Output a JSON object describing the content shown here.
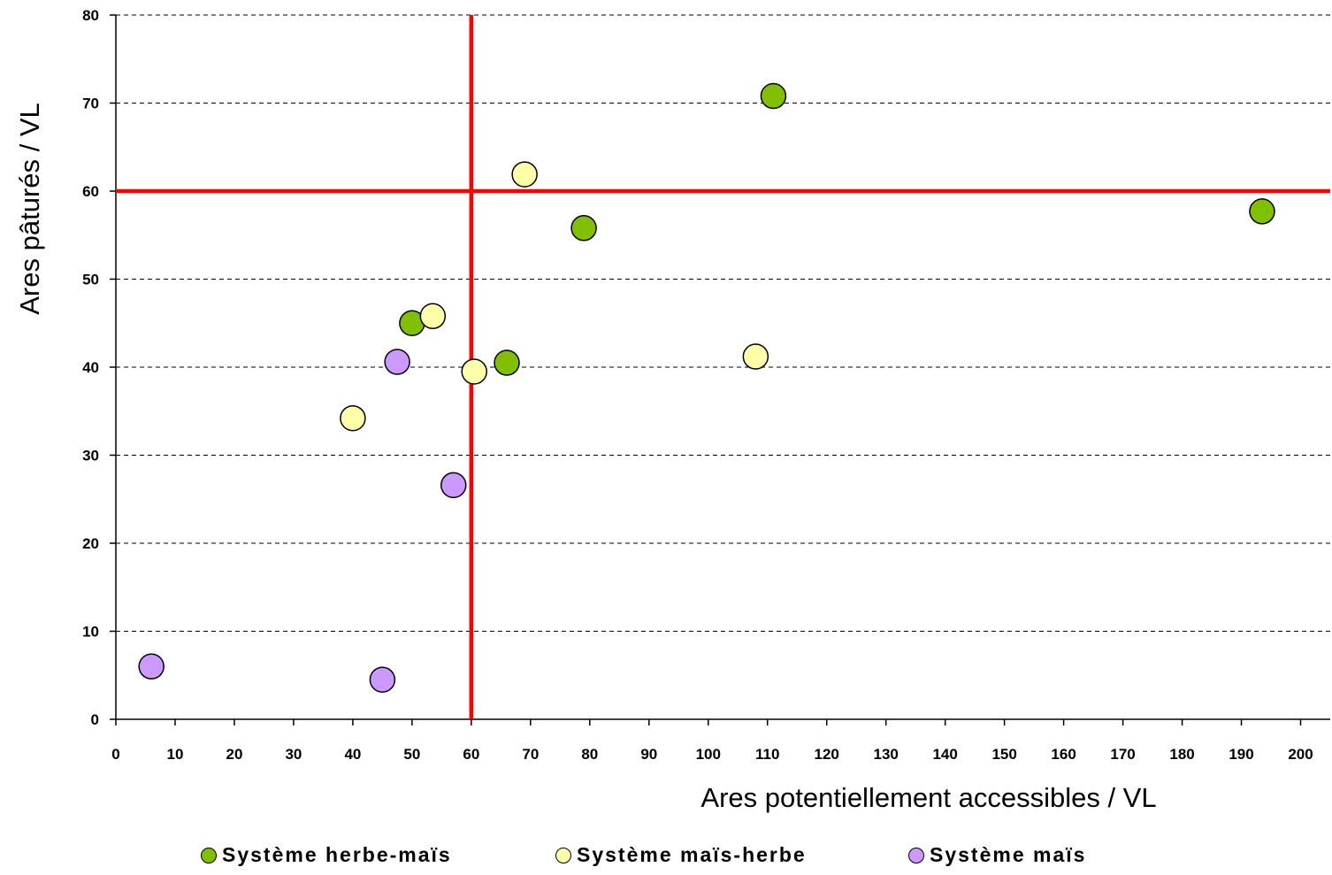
{
  "chart_data": {
    "type": "scatter",
    "title": "",
    "xlabel": "Ares potentiellement accessibles / VL",
    "ylabel": "Ares pâturés / VL",
    "xlim": [
      0,
      205
    ],
    "ylim": [
      0,
      80
    ],
    "x_ticks": [
      0,
      10,
      20,
      30,
      40,
      50,
      60,
      70,
      80,
      90,
      100,
      110,
      120,
      130,
      140,
      150,
      160,
      170,
      180,
      190,
      200
    ],
    "y_ticks": [
      0,
      10,
      20,
      30,
      40,
      50,
      60,
      70,
      80
    ],
    "grid": "horizontal dashed",
    "legend_position": "bottom",
    "reference_lines": {
      "vertical_x": 60,
      "horizontal_y": 60,
      "color": "#ff0000"
    },
    "series": [
      {
        "name": "Système herbe-maïs",
        "color": "#80c000",
        "points": [
          [
            50,
            45
          ],
          [
            66,
            40.5
          ],
          [
            79,
            55.8
          ],
          [
            111,
            70.8
          ],
          [
            193.5,
            57.7
          ]
        ]
      },
      {
        "name": "Système maïs-herbe",
        "color": "#ffffaa",
        "points": [
          [
            40,
            34.2
          ],
          [
            53.5,
            45.8
          ],
          [
            60.5,
            39.5
          ],
          [
            69,
            61.9
          ],
          [
            108,
            41.2
          ]
        ]
      },
      {
        "name": "Système maïs",
        "color": "#cc99ff",
        "points": [
          [
            6,
            6
          ],
          [
            45,
            4.5
          ],
          [
            47.5,
            40.6
          ],
          [
            57,
            26.6
          ]
        ]
      }
    ]
  }
}
